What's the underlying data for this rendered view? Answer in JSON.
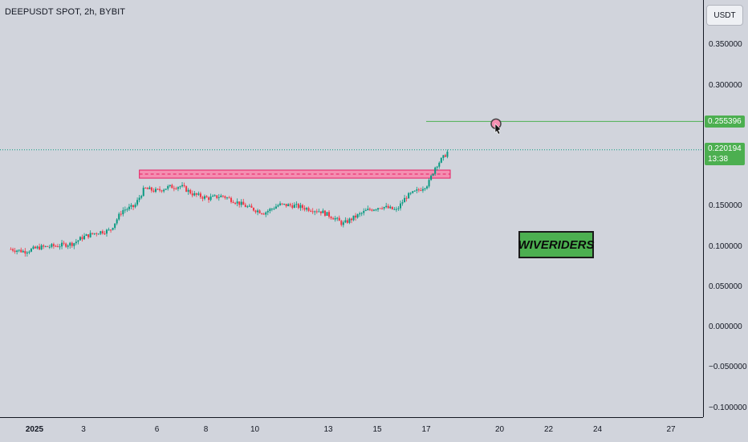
{
  "header": {
    "title": "DEEPUSDT SPOT, 2h, BYBIT"
  },
  "yaxis": {
    "unit": "USDT"
  },
  "price_labels": {
    "target": "0.255396",
    "last": "0.220194",
    "countdown": "13:38"
  },
  "branding": {
    "text": "WIVERIDERS"
  },
  "colors": {
    "up": "#089981",
    "down": "#f23645",
    "zone_fill": "#f48fb1",
    "zone_line": "#e91e63",
    "target_line": "#4caf50",
    "brand_bg": "#4caf50"
  },
  "chart_data": {
    "type": "candlestick",
    "title": "DEEPUSDT SPOT, 2h, BYBIT",
    "xlabel": "",
    "ylabel": "",
    "ylim": [
      -0.11,
      0.39
    ],
    "x_ticks": [
      "2025",
      "3",
      "6",
      "8",
      "10",
      "13",
      "15",
      "17",
      "20",
      "22",
      "24",
      "27"
    ],
    "x_tick_days": [
      1,
      3,
      6,
      8,
      10,
      13,
      15,
      17,
      20,
      22,
      24,
      27
    ],
    "y_ticks": [
      0.35,
      0.3,
      0.15,
      0.1,
      0.05,
      0.0,
      -0.05,
      -0.1
    ],
    "y_tick_labels": [
      "0.350000",
      "0.300000",
      "0.150000",
      "0.100000",
      "0.050000",
      "0.000000",
      "−0.050000",
      "−0.100000"
    ],
    "price_path": [
      {
        "day": 0.05,
        "price": 0.097
      },
      {
        "day": 0.6,
        "price": 0.094
      },
      {
        "day": 1.2,
        "price": 0.099
      },
      {
        "day": 1.9,
        "price": 0.101
      },
      {
        "day": 2.6,
        "price": 0.104
      },
      {
        "day": 3.0,
        "price": 0.112
      },
      {
        "day": 3.6,
        "price": 0.118
      },
      {
        "day": 4.1,
        "price": 0.12
      },
      {
        "day": 4.6,
        "price": 0.145
      },
      {
        "day": 5.1,
        "price": 0.15
      },
      {
        "day": 5.5,
        "price": 0.172
      },
      {
        "day": 6.0,
        "price": 0.169
      },
      {
        "day": 6.5,
        "price": 0.174
      },
      {
        "day": 7.0,
        "price": 0.175
      },
      {
        "day": 7.5,
        "price": 0.165
      },
      {
        "day": 8.1,
        "price": 0.16
      },
      {
        "day": 8.7,
        "price": 0.163
      },
      {
        "day": 9.3,
        "price": 0.155
      },
      {
        "day": 9.8,
        "price": 0.148
      },
      {
        "day": 10.4,
        "price": 0.142
      },
      {
        "day": 11.0,
        "price": 0.152
      },
      {
        "day": 11.6,
        "price": 0.151
      },
      {
        "day": 12.2,
        "price": 0.147
      },
      {
        "day": 12.7,
        "price": 0.144
      },
      {
        "day": 13.3,
        "price": 0.135
      },
      {
        "day": 13.6,
        "price": 0.128
      },
      {
        "day": 14.0,
        "price": 0.135
      },
      {
        "day": 14.6,
        "price": 0.145
      },
      {
        "day": 15.2,
        "price": 0.15
      },
      {
        "day": 15.8,
        "price": 0.145
      },
      {
        "day": 16.2,
        "price": 0.162
      },
      {
        "day": 16.7,
        "price": 0.17
      },
      {
        "day": 17.1,
        "price": 0.178
      },
      {
        "day": 17.4,
        "price": 0.2
      },
      {
        "day": 17.7,
        "price": 0.21
      },
      {
        "day": 17.95,
        "price": 0.22
      }
    ],
    "resistance_zone": {
      "from_day": 5.3,
      "to_day": 18.0,
      "low": 0.185,
      "high": 0.195
    },
    "target_level": 0.255396,
    "last_price": 0.220194
  }
}
